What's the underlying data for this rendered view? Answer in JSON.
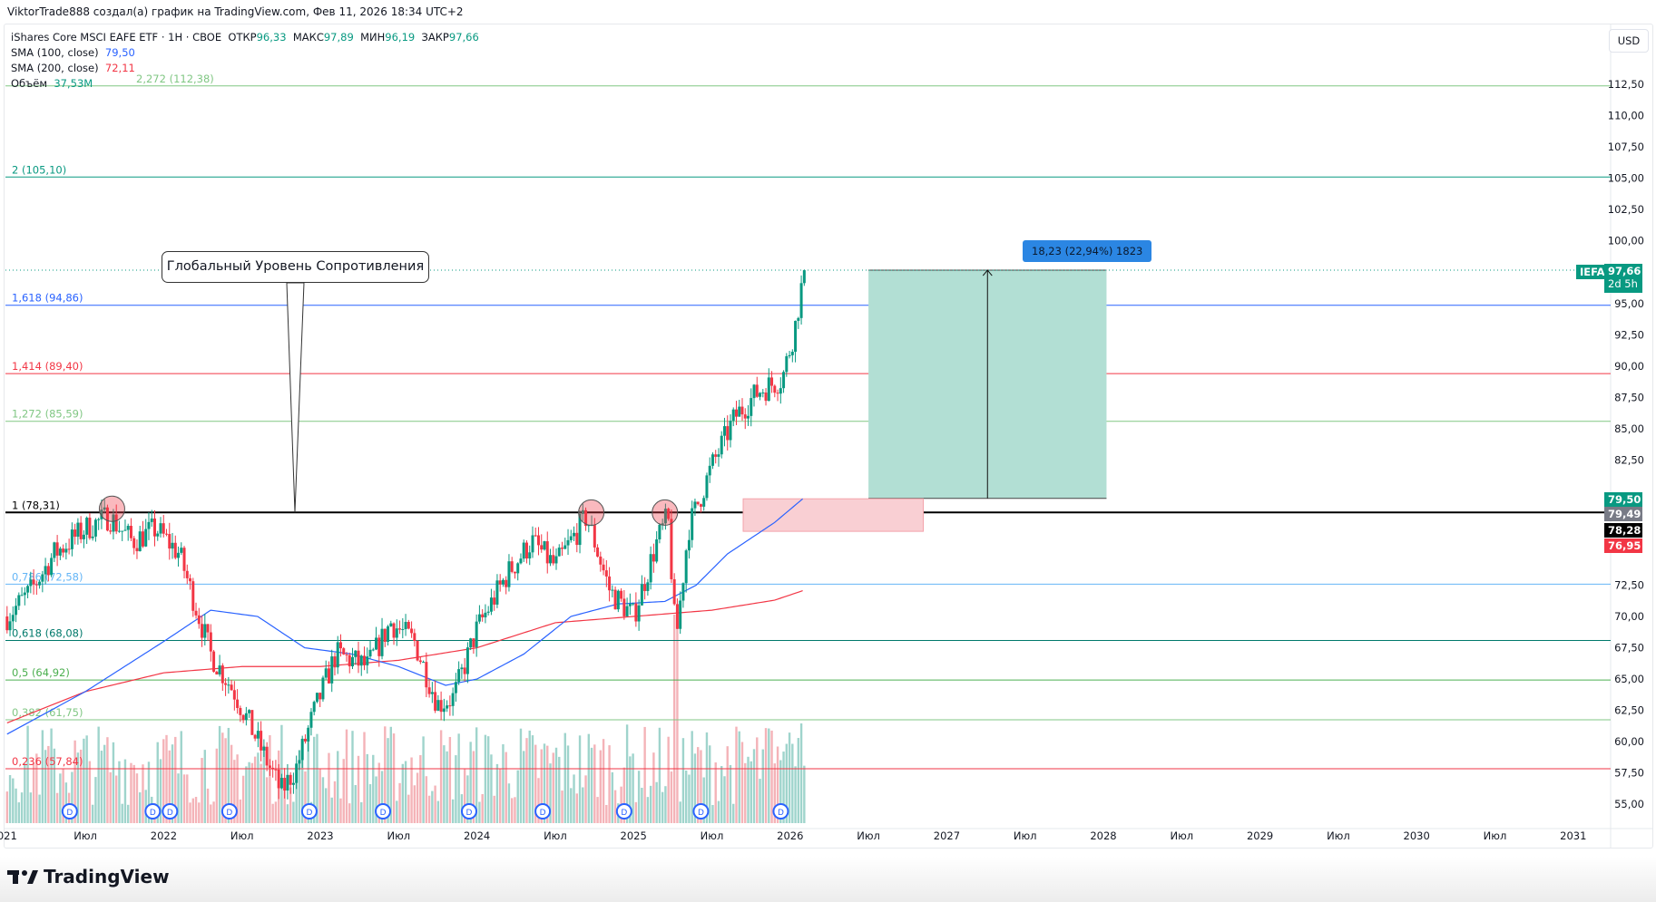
{
  "header": {
    "caption": "ViktorTrade888 создал(а) график на TradingView.com, Фев 11, 2026 18:34 UTC+2",
    "symbol_line": "iShares Core MSCI EAFE ETF · 1H · CBOE",
    "open_label": "ОТКР",
    "open": "96,33",
    "high_label": "МАКС",
    "high": "97,89",
    "low_label": "МИН",
    "low": "96,19",
    "close_label": "ЗАКР",
    "close": "97,66",
    "sma100_label": "SMA (100, close)",
    "sma100_value": "79,50",
    "sma200_label": "SMA (200, close)",
    "sma200_value": "72,11",
    "volume_label": "Объём",
    "volume_value": "37,53M"
  },
  "currency": "USD",
  "footer": {
    "brand": "TradingView"
  },
  "annotations": {
    "callout": "Глобальный Уровень Сопротивления",
    "position_label": "18,23 (22,94%) 1823"
  },
  "price_tags": {
    "symbol": "IEFA",
    "last": "97,66",
    "countdown": "2d 5h",
    "sma100": "79,50",
    "t2": "79,49",
    "t3": "78,28",
    "t4": "76,95"
  },
  "chart_data": {
    "type": "candlestick",
    "title": "iShares Core MSCI EAFE ETF",
    "ylim": [
      53.5,
      115
    ],
    "xlim": [
      2020.97,
      2031.2
    ],
    "y_ticks": [
      "112,50",
      "110,00",
      "107,50",
      "105,00",
      "102,50",
      "100,00",
      "95,00",
      "92,50",
      "90,00",
      "87,50",
      "85,00",
      "82,50",
      "72,50",
      "70,00",
      "67,50",
      "65,00",
      "62,50",
      "60,00",
      "57,50",
      "55,00"
    ],
    "y_tick_values": [
      112.5,
      110,
      107.5,
      105,
      102.5,
      100,
      95,
      92.5,
      90,
      87.5,
      85,
      82.5,
      72.5,
      70,
      67.5,
      65,
      62.5,
      60,
      57.5,
      55
    ],
    "x_ticks": [
      {
        "t": 2021.0,
        "label": "021"
      },
      {
        "t": 2021.5,
        "label": "Июл"
      },
      {
        "t": 2022,
        "label": "2022"
      },
      {
        "t": 2022.5,
        "label": "Июл"
      },
      {
        "t": 2023,
        "label": "2023"
      },
      {
        "t": 2023.5,
        "label": "Июл"
      },
      {
        "t": 2024,
        "label": "2024"
      },
      {
        "t": 2024.5,
        "label": "Июл"
      },
      {
        "t": 2025,
        "label": "2025"
      },
      {
        "t": 2025.5,
        "label": "Июл"
      },
      {
        "t": 2026,
        "label": "2026"
      },
      {
        "t": 2026.5,
        "label": "Июл"
      },
      {
        "t": 2027,
        "label": "2027"
      },
      {
        "t": 2027.5,
        "label": "Июл"
      },
      {
        "t": 2028,
        "label": "2028"
      },
      {
        "t": 2028.5,
        "label": "Июл"
      },
      {
        "t": 2029,
        "label": "2029"
      },
      {
        "t": 2029.5,
        "label": "Июл"
      },
      {
        "t": 2030,
        "label": "2030"
      },
      {
        "t": 2030.5,
        "label": "Июл"
      },
      {
        "t": 2031,
        "label": "2031"
      }
    ],
    "price_path": [
      [
        2021.0,
        70
      ],
      [
        2021.15,
        72
      ],
      [
        2021.3,
        75
      ],
      [
        2021.5,
        77
      ],
      [
        2021.65,
        78
      ],
      [
        2021.8,
        76
      ],
      [
        2021.95,
        77
      ],
      [
        2022.1,
        75
      ],
      [
        2022.2,
        71
      ],
      [
        2022.3,
        67
      ],
      [
        2022.45,
        64
      ],
      [
        2022.6,
        60
      ],
      [
        2022.75,
        56
      ],
      [
        2022.85,
        58
      ],
      [
        2022.95,
        62
      ],
      [
        2023.1,
        67
      ],
      [
        2023.3,
        66
      ],
      [
        2023.45,
        69.5
      ],
      [
        2023.6,
        68
      ],
      [
        2023.75,
        63
      ],
      [
        2023.85,
        63.5
      ],
      [
        2024.0,
        69
      ],
      [
        2024.2,
        73.5
      ],
      [
        2024.35,
        76
      ],
      [
        2024.5,
        74
      ],
      [
        2024.7,
        78
      ],
      [
        2024.85,
        72
      ],
      [
        2025.0,
        70
      ],
      [
        2025.15,
        76
      ],
      [
        2025.22,
        78
      ],
      [
        2025.27,
        68
      ],
      [
        2025.35,
        77
      ],
      [
        2025.5,
        82
      ],
      [
        2025.65,
        86
      ],
      [
        2025.8,
        88
      ],
      [
        2025.95,
        89
      ],
      [
        2026.03,
        93
      ],
      [
        2026.09,
        97.7
      ]
    ],
    "sma100": [
      [
        2021.0,
        60.6
      ],
      [
        2021.5,
        64
      ],
      [
        2022.0,
        68
      ],
      [
        2022.3,
        70.5
      ],
      [
        2022.6,
        70
      ],
      [
        2022.9,
        67.5
      ],
      [
        2023.2,
        67
      ],
      [
        2023.5,
        66
      ],
      [
        2023.8,
        64.5
      ],
      [
        2024.0,
        65
      ],
      [
        2024.3,
        67
      ],
      [
        2024.6,
        70
      ],
      [
        2024.9,
        71
      ],
      [
        2025.2,
        71.2
      ],
      [
        2025.4,
        72.5
      ],
      [
        2025.6,
        75
      ],
      [
        2025.9,
        77.5
      ],
      [
        2026.09,
        79.5
      ]
    ],
    "sma200": [
      [
        2021.0,
        61.5
      ],
      [
        2021.5,
        64
      ],
      [
        2022.0,
        65.5
      ],
      [
        2022.5,
        66
      ],
      [
        2023.0,
        66
      ],
      [
        2023.5,
        66.5
      ],
      [
        2024.0,
        67.5
      ],
      [
        2024.5,
        69.5
      ],
      [
        2025.0,
        70
      ],
      [
        2025.5,
        70.5
      ],
      [
        2025.9,
        71.3
      ],
      [
        2026.09,
        72.1
      ]
    ],
    "fib_levels": [
      {
        "label": "2,272 (112,38)",
        "value": 112.38,
        "color": "#81c784"
      },
      {
        "label": "2 (105,10)",
        "value": 105.1,
        "color": "#089981"
      },
      {
        "label": "1,618 (94,86)",
        "value": 94.86,
        "color": "#2962ff"
      },
      {
        "label": "1,414 (89,40)",
        "value": 89.4,
        "color": "#f23645"
      },
      {
        "label": "1,272 (85,59)",
        "value": 85.59,
        "color": "#81c784"
      },
      {
        "label": "1 (78,31)",
        "value": 78.31,
        "color": "#000000"
      },
      {
        "label": "0,786 (72,58)",
        "value": 72.58,
        "color": "#64b5f6"
      },
      {
        "label": "0,618 (68,08)",
        "value": 68.08,
        "color": "#00796b"
      },
      {
        "label": "0,5 (64,92)",
        "value": 64.92,
        "color": "#4caf50"
      },
      {
        "label": "0,382 (61,75)",
        "value": 61.75,
        "color": "#81c784"
      },
      {
        "label": "0,236 (57,84)",
        "value": 57.84,
        "color": "#f23645"
      }
    ],
    "long_position": {
      "t0": 2026.5,
      "t1": 2028.02,
      "entry": 79.43,
      "target": 97.66
    },
    "demand_zone": {
      "t0": 2025.7,
      "t1": 2026.85,
      "top": 79.4,
      "bottom": 76.8
    },
    "touch_points": [
      [
        2021.67,
        78.6
      ],
      [
        2024.73,
        78.3
      ],
      [
        2025.2,
        78.3
      ]
    ],
    "dividends": [
      2021.4,
      2021.93,
      2021.97,
      2022.42,
      2022.93,
      2023.4,
      2023.95,
      2024.42,
      2024.94,
      2025.43,
      2025.94
    ],
    "colors": {
      "up": "#089981",
      "down": "#f23645",
      "sma100": "#2962ff",
      "sma200": "#f23645",
      "long_fill": "#b2dfd4",
      "zone_fill": "#f9cfd3"
    }
  }
}
